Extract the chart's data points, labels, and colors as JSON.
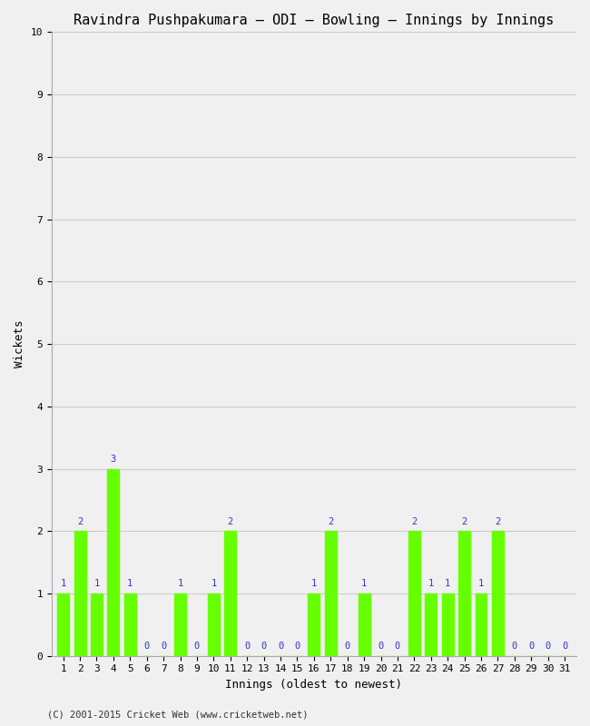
{
  "title": "Ravindra Pushpakumara – ODI – Bowling – Innings by Innings",
  "xlabel": "Innings (oldest to newest)",
  "ylabel": "Wickets",
  "footnote": "(C) 2001-2015 Cricket Web (www.cricketweb.net)",
  "ylim": [
    0,
    10
  ],
  "yticks": [
    0,
    1,
    2,
    3,
    4,
    5,
    6,
    7,
    8,
    9,
    10
  ],
  "innings": [
    1,
    2,
    3,
    4,
    5,
    6,
    7,
    8,
    9,
    10,
    11,
    12,
    13,
    14,
    15,
    16,
    17,
    18,
    19,
    20,
    21,
    22,
    23,
    24,
    25,
    26,
    27,
    28,
    29,
    30,
    31
  ],
  "wickets": [
    1,
    2,
    1,
    3,
    1,
    0,
    0,
    1,
    0,
    1,
    2,
    0,
    0,
    0,
    0,
    1,
    2,
    0,
    1,
    0,
    0,
    2,
    1,
    1,
    2,
    1,
    2,
    0,
    0,
    0,
    0
  ],
  "bar_color": "#66ff00",
  "bar_edge_color": "#66ff00",
  "label_color": "#3333cc",
  "bg_color": "#f0f0f0",
  "grid_color": "#cccccc",
  "title_fontsize": 11,
  "axis_label_fontsize": 9,
  "tick_label_fontsize": 8,
  "bar_label_fontsize": 7.5
}
